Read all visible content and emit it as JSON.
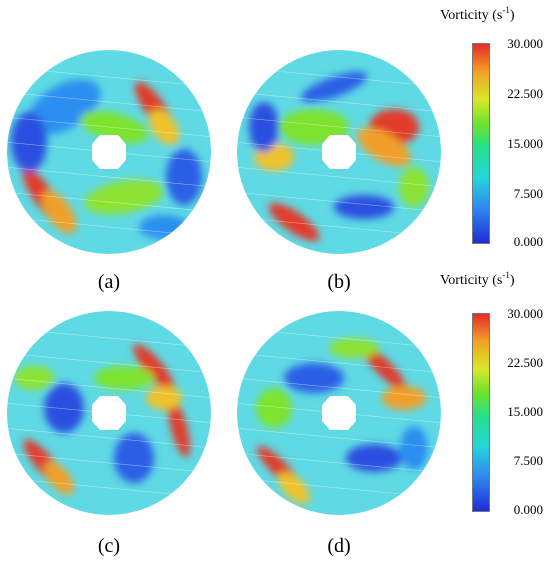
{
  "panels": [
    {
      "id": "a",
      "label": "(a)"
    },
    {
      "id": "b",
      "label": "(b)"
    },
    {
      "id": "c",
      "label": "(c)"
    },
    {
      "id": "d",
      "label": "(d)"
    }
  ],
  "colorbars": [
    {
      "title": "Vorticity (s",
      "exponent": "-1",
      "closing": ")",
      "ticks": [
        "30.000",
        "22.500",
        "15.000",
        "7.500",
        "0.000"
      ]
    },
    {
      "title": "Vorticity (s",
      "exponent": "-1",
      "closing": ")",
      "ticks": [
        "30.000",
        "22.500",
        "15.000",
        "7.500",
        "0.000"
      ]
    }
  ],
  "colors": {
    "field": "#34d8d0",
    "low": "#1f2bd6",
    "mid": "#6fe32a",
    "high": "#e52b2b"
  }
}
